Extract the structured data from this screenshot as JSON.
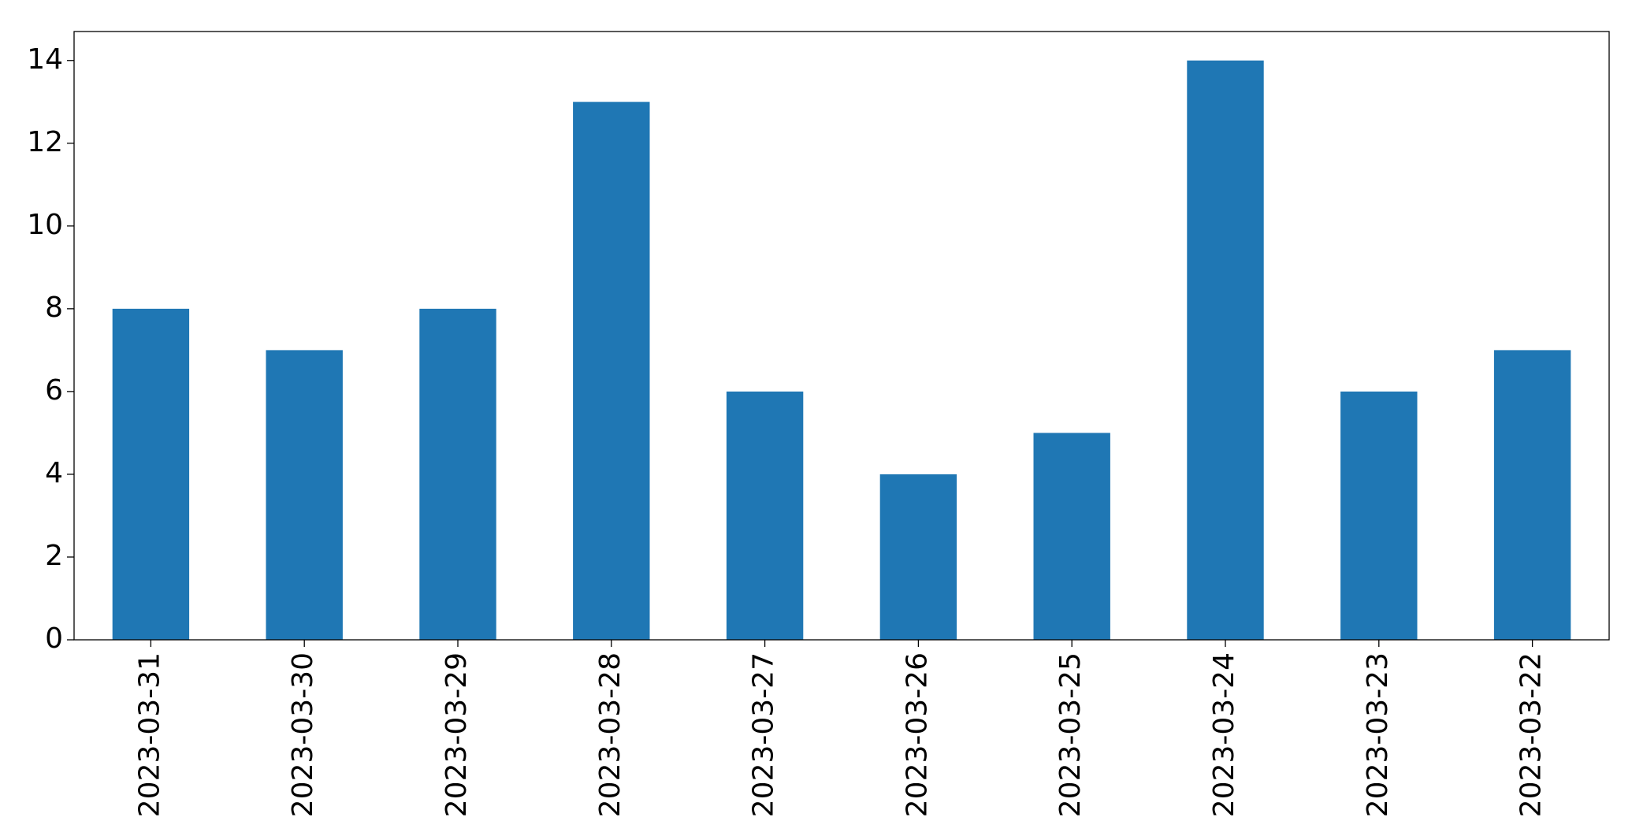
{
  "chart_data": {
    "type": "bar",
    "categories": [
      "2023-03-31",
      "2023-03-30",
      "2023-03-29",
      "2023-03-28",
      "2023-03-27",
      "2023-03-26",
      "2023-03-25",
      "2023-03-24",
      "2023-03-23",
      "2023-03-22"
    ],
    "values": [
      8,
      7,
      8,
      13,
      6,
      4,
      5,
      14,
      6,
      7
    ],
    "color": "#1f77b4",
    "ylim": [
      0,
      14.7
    ],
    "yticks": [
      0,
      2,
      4,
      6,
      8,
      10,
      12,
      14
    ],
    "grid": false
  }
}
